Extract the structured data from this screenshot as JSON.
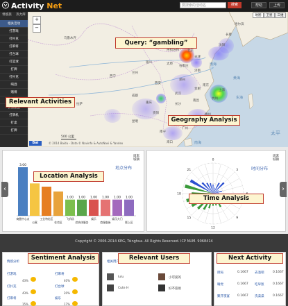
{
  "header": {
    "app_name": "Activity ",
    "app_name_accent": "Net",
    "search_placeholder": "要搜索的活动名",
    "search_button": "搜索",
    "btn_help": "帮助",
    "btn_upload": "上传"
  },
  "sidebar": {
    "tabs": [
      "情感旅",
      "热力库"
    ],
    "items": [
      "相关活动",
      "打游戏",
      "打扑克",
      "打麻将",
      "打台球",
      "打篮球",
      "打牌",
      "打扑克",
      "喝酒",
      "赌博",
      "打麻将",
      "参加聚会",
      "打牌机",
      "打桌",
      "打牌"
    ]
  },
  "map": {
    "tabs": [
      "地图",
      "卫星",
      "三维"
    ],
    "labels": [
      "北京",
      "天津",
      "石家庄",
      "太原",
      "济南",
      "郑州",
      "西安",
      "武汉",
      "南京",
      "上海",
      "合肥",
      "长沙",
      "南昌",
      "杭州",
      "福州",
      "贵阳",
      "昆明",
      "广州",
      "南宁",
      "海口",
      "兰州",
      "西宁",
      "乌鲁木齐",
      "拉萨",
      "成都",
      "重庆",
      "呼和浩特",
      "沈阳",
      "长春",
      "哈尔滨",
      "银川",
      "台北"
    ],
    "seas": [
      "黄海",
      "东海",
      "渤海",
      "南海",
      "太平"
    ],
    "scale": "500 公里",
    "copyright": "© 2014 Baidu - Data © Navinfo & AutoNavi & Yandex"
  },
  "callouts": {
    "query": "Query: “gambling”",
    "relevant_activities": "Relevant Activities",
    "geography": "Geography Analysis",
    "location": "Location Analysis",
    "time": "Time Analysis",
    "sentiment": "Sentiment Analysis",
    "relevant_users": "Relevant Users",
    "next_activity": "Next Activity"
  },
  "location_panel": {
    "title": "地点分布",
    "corner": "周末\n城镇"
  },
  "time_panel": {
    "title": "时间分布",
    "corner": "周末\n城镇",
    "hours": [
      "0",
      "3",
      "6",
      "9",
      "12",
      "15",
      "18",
      "21"
    ]
  },
  "chart_data": {
    "type": "bar",
    "title": "地点分布",
    "categories": [
      "商圈中心点",
      "公寓",
      "工业特化区",
      "住宅区",
      "飞机场",
      "综合体服务",
      "娱乐",
      "商服临街",
      "娱乐大门",
      "影上区"
    ],
    "values": [
      3.0,
      2.0,
      1.8,
      1.5,
      1.0,
      1.0,
      1.0,
      1.0,
      1.0,
      1.0
    ],
    "value_labels": [
      "3.00",
      "",
      "",
      "",
      "1.00",
      "1.00",
      "1.00",
      "1.00",
      "1.00",
      "1.00"
    ],
    "colors": [
      "#4a7fc1",
      "#f5c542",
      "#e67e22",
      "#e8a33c",
      "#7cbf4d",
      "#5aa64a",
      "#d9534f",
      "#e57373",
      "#a569bd",
      "#8e6bbf"
    ],
    "ylim": [
      0,
      3
    ]
  },
  "footer": {
    "text": "Copyright © 2006-2014 KEG, Tsinghua. All Rights Reserved. ICP NUM. 9068414"
  },
  "sentiment": {
    "header": "情感分析",
    "rows": [
      {
        "label": "打游戏",
        "pct1": "43%",
        "pct2": "40%"
      },
      {
        "label": "打扑克",
        "pct1": "43%",
        "pct2": "20%"
      },
      {
        "label": "打麻将",
        "pct1": "15%",
        "pct2": "17%"
      }
    ],
    "col2": [
      "打麻将",
      "打台球",
      "娱乐"
    ]
  },
  "users": {
    "header": "相关用户",
    "header2": "相关活动",
    "names": [
      "lulu",
      "小可爱的",
      "Cute H",
      "好不容易"
    ]
  },
  "next_activity": {
    "header": "下一个活动",
    "rows": [
      {
        "a": "牌局",
        "v1": "0.1667",
        "b": "去酒吧",
        "v2": "0.1667"
      },
      {
        "a": "睡觉",
        "v1": "0.1667",
        "b": "吃早饭",
        "v2": "0.1667"
      },
      {
        "a": "聚开夜宴",
        "v1": "0.1667",
        "b": "洗澡澡",
        "v2": "0.1667"
      }
    ]
  },
  "colors": {
    "header_bg": "#1c1c1c",
    "accent": "#f39c12",
    "callout_border": "#c0392b",
    "callout_bg": "#fdf5d0"
  }
}
